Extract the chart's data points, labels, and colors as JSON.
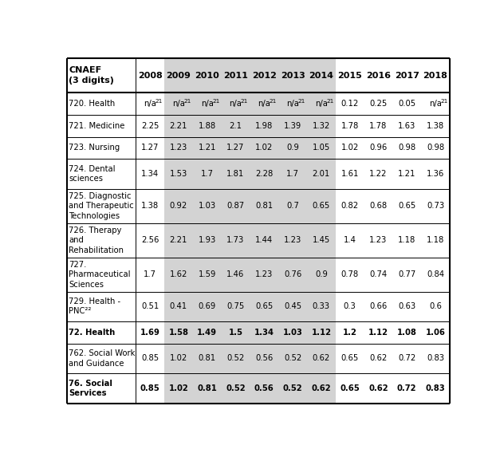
{
  "columns": [
    "CNAEF\n(3 digits)",
    "2008",
    "2009",
    "2010",
    "2011",
    "2012",
    "2013",
    "2014",
    "2015",
    "2016",
    "2017",
    "2018"
  ],
  "rows": [
    {
      "label": "720. Health",
      "values": [
        "n/a",
        "n/a",
        "n/a",
        "n/a",
        "n/a",
        "n/a",
        "n/a",
        "0.12",
        "0.25",
        "0.05",
        "n/a"
      ],
      "bold": false,
      "na_indices": [
        0,
        1,
        2,
        3,
        4,
        5,
        6,
        10
      ]
    },
    {
      "label": "721. Medicine",
      "values": [
        "2.25",
        "2.21",
        "1.88",
        "2.1",
        "1.98",
        "1.39",
        "1.32",
        "1.78",
        "1.78",
        "1.63",
        "1.38"
      ],
      "bold": false,
      "na_indices": []
    },
    {
      "label": "723. Nursing",
      "values": [
        "1.27",
        "1.23",
        "1.21",
        "1.27",
        "1.02",
        "0.9",
        "1.05",
        "1.02",
        "0.96",
        "0.98",
        "0.98"
      ],
      "bold": false,
      "na_indices": []
    },
    {
      "label": "724. Dental\nsciences",
      "values": [
        "1.34",
        "1.53",
        "1.7",
        "1.81",
        "2.28",
        "1.7",
        "2.01",
        "1.61",
        "1.22",
        "1.21",
        "1.36"
      ],
      "bold": false,
      "na_indices": []
    },
    {
      "label": "725. Diagnostic\nand Therapeutic\nTechnologies",
      "values": [
        "1.38",
        "0.92",
        "1.03",
        "0.87",
        "0.81",
        "0.7",
        "0.65",
        "0.82",
        "0.68",
        "0.65",
        "0.73"
      ],
      "bold": false,
      "na_indices": []
    },
    {
      "label": "726. Therapy\nand\nRehabilitation",
      "values": [
        "2.56",
        "2.21",
        "1.93",
        "1.73",
        "1.44",
        "1.23",
        "1.45",
        "1.4",
        "1.23",
        "1.18",
        "1.18"
      ],
      "bold": false,
      "na_indices": []
    },
    {
      "label": "727.\nPharmaceutical\nSciences",
      "values": [
        "1.7",
        "1.62",
        "1.59",
        "1.46",
        "1.23",
        "0.76",
        "0.9",
        "0.78",
        "0.74",
        "0.77",
        "0.84"
      ],
      "bold": false,
      "na_indices": []
    },
    {
      "label": "729. Health -\nPNC²²",
      "values": [
        "0.51",
        "0.41",
        "0.69",
        "0.75",
        "0.65",
        "0.45",
        "0.33",
        "0.3",
        "0.66",
        "0.63",
        "0.6"
      ],
      "bold": false,
      "na_indices": []
    },
    {
      "label": "72. Health",
      "values": [
        "1.69",
        "1.58",
        "1.49",
        "1.5",
        "1.34",
        "1.03",
        "1.12",
        "1.2",
        "1.12",
        "1.08",
        "1.06"
      ],
      "bold": true,
      "na_indices": []
    },
    {
      "label": "762. Social Work\nand Guidance",
      "values": [
        "0.85",
        "1.02",
        "0.81",
        "0.52",
        "0.56",
        "0.52",
        "0.62",
        "0.65",
        "0.62",
        "0.72",
        "0.83"
      ],
      "bold": false,
      "na_indices": []
    },
    {
      "label": "76. Social\nServices",
      "values": [
        "0.85",
        "1.02",
        "0.81",
        "0.52",
        "0.56",
        "0.52",
        "0.62",
        "0.65",
        "0.62",
        "0.72",
        "0.83"
      ],
      "bold": true,
      "na_indices": []
    }
  ],
  "shade_color": "#d3d3d3",
  "shaded_year_col_indices": [
    1,
    2,
    3,
    4,
    5,
    6
  ],
  "line_color": "#000000",
  "text_color": "#000000",
  "font_size": 7.2,
  "header_font_size": 8.0,
  "col_widths_raw": [
    2.05,
    0.85,
    0.85,
    0.85,
    0.85,
    0.85,
    0.85,
    0.85,
    0.85,
    0.85,
    0.85,
    0.85
  ],
  "row_heights_raw": [
    1.55,
    1.0,
    1.0,
    1.0,
    1.35,
    1.55,
    1.55,
    1.55,
    1.35,
    1.0,
    1.35,
    1.35
  ]
}
